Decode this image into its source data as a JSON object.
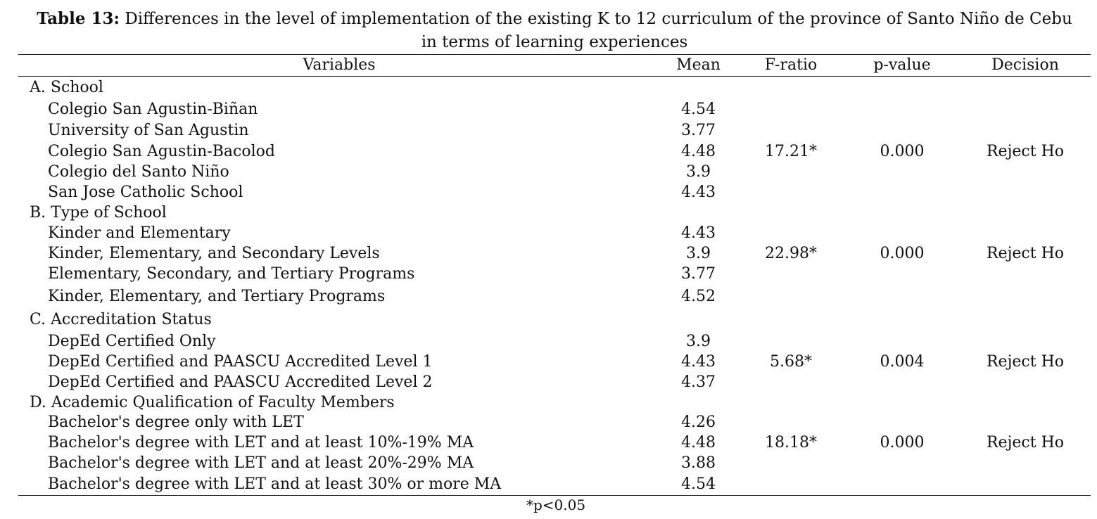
{
  "caption": {
    "label": "Table 13:",
    "line1": "Differences in the level of implementation of the existing K to 12 curriculum of the province of Santo Niño de Cebu",
    "line2": "in terms of learning experiences"
  },
  "headers": {
    "variables": "Variables",
    "mean": "Mean",
    "f_ratio": "F-ratio",
    "p_value": "p-value",
    "decision": "Decision"
  },
  "groups": [
    {
      "title": "A. School",
      "items": [
        {
          "name": "Colegio San Agustin-Biñan",
          "mean": "4.54"
        },
        {
          "name": "University of San Agustin",
          "mean": "3.77"
        },
        {
          "name": "Colegio San Agustin-Bacolod",
          "mean": "4.48"
        },
        {
          "name": "Colegio del Santo Niño",
          "mean": "3.9"
        },
        {
          "name": "San Jose Catholic School",
          "mean": "4.43"
        }
      ],
      "f_ratio": "17.21*",
      "p_value": "0.000",
      "decision": "Reject Ho"
    },
    {
      "title": "B. Type of School",
      "items": [
        {
          "name": "Kinder and Elementary",
          "mean": "4.43"
        },
        {
          "name": "Kinder, Elementary, and Secondary Levels",
          "mean": "3.9"
        },
        {
          "name": "Elementary, Secondary, and Tertiary Programs",
          "mean": "3.77"
        },
        {
          "name": "Kinder, Elementary, and Tertiary Programs",
          "mean": "4.52"
        }
      ],
      "f_ratio": "22.98*",
      "p_value": "0.000",
      "decision": "Reject Ho"
    },
    {
      "title": "C. Accreditation Status",
      "items": [
        {
          "name": "DepEd Certified Only",
          "mean": "3.9"
        },
        {
          "name": "DepEd Certified and PAASCU Accredited Level 1",
          "mean": "4.43"
        },
        {
          "name": "DepEd Certified and PAASCU Accredited Level 2",
          "mean": "4.37"
        }
      ],
      "f_ratio": "5.68*",
      "p_value": "0.004",
      "decision": "Reject Ho"
    },
    {
      "title": "D. Academic Qualification of Faculty Members",
      "items": [
        {
          "name": "Bachelor's degree only with LET",
          "mean": "4.26"
        },
        {
          "name": "Bachelor's degree with LET and at least 10%-19% MA",
          "mean": "4.48"
        },
        {
          "name": "Bachelor's degree with LET and at least 20%-29% MA",
          "mean": "3.88"
        },
        {
          "name": "Bachelor's degree with LET and at least 30% or more MA",
          "mean": "4.54"
        }
      ],
      "f_ratio": "18.18*",
      "p_value": "0.000",
      "decision": "Reject Ho"
    }
  ],
  "footnote": "*p<0.05"
}
